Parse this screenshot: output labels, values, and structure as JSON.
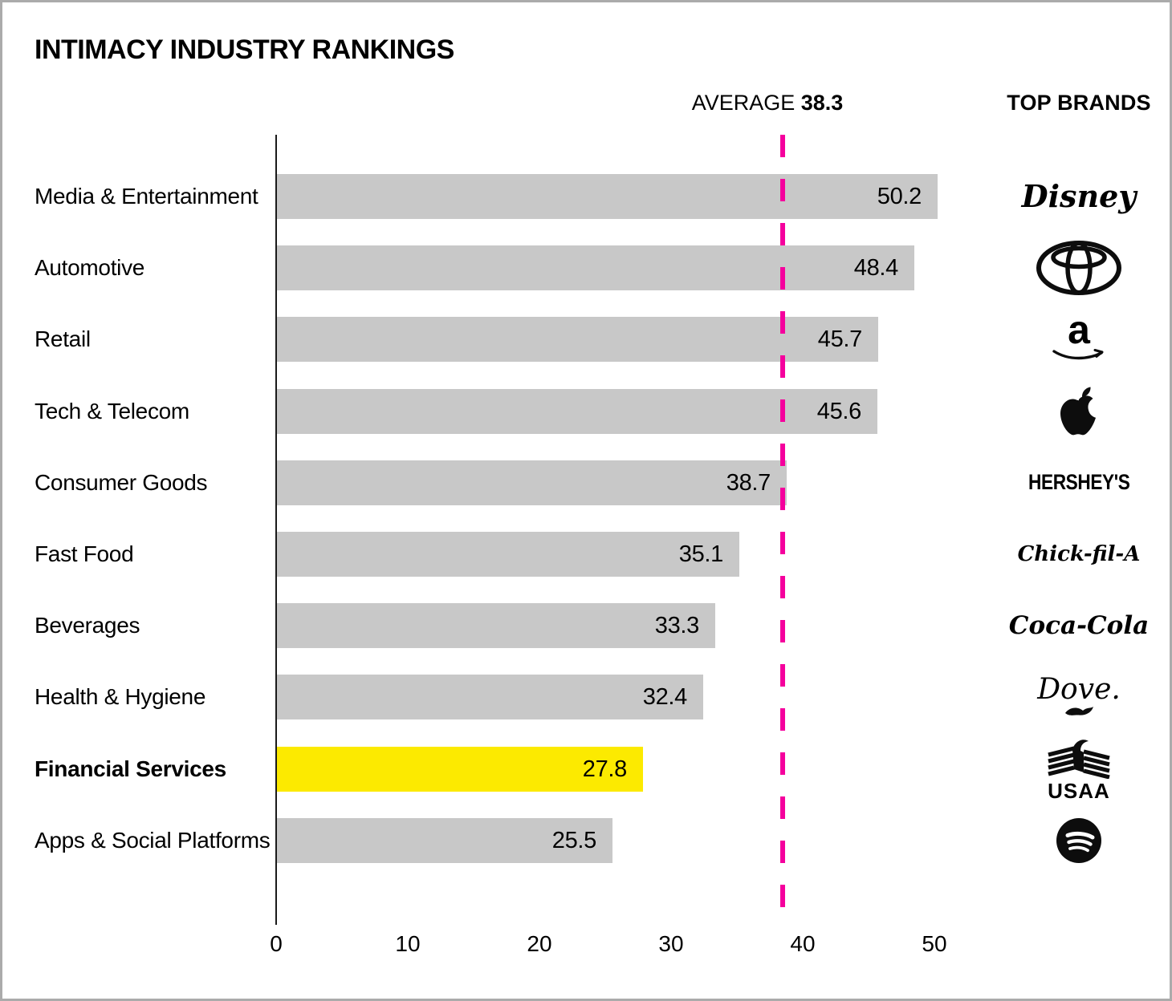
{
  "title": "INTIMACY INDUSTRY RANKINGS",
  "average_label": "AVERAGE",
  "average_value_text": "38.3",
  "top_brands_label": "TOP BRANDS",
  "chart_data": {
    "type": "bar",
    "orientation": "horizontal",
    "title": "INTIMACY INDUSTRY RANKINGS",
    "categories": [
      "Media & Entertainment",
      "Automotive",
      "Retail",
      "Tech & Telecom",
      "Consumer Goods",
      "Fast Food",
      "Beverages",
      "Health & Hygiene",
      "Financial Services",
      "Apps & Social Platforms"
    ],
    "values": [
      50.2,
      48.4,
      45.7,
      45.6,
      38.7,
      35.1,
      33.3,
      32.4,
      27.8,
      25.5
    ],
    "value_labels": [
      "50.2",
      "48.4",
      "45.7",
      "45.6",
      "38.7",
      "35.1",
      "33.3",
      "32.4",
      "27.8",
      "25.5"
    ],
    "top_brands": [
      "Disney",
      "Toyota",
      "Amazon",
      "Apple",
      "Hershey's",
      "Chick-fil-A",
      "Coca-Cola",
      "Dove",
      "USAA",
      "Spotify"
    ],
    "highlight_category": "Financial Services",
    "average": 38.3,
    "x_ticks": [
      "0",
      "10",
      "20",
      "30",
      "40",
      "50"
    ],
    "x_tick_values": [
      0,
      10,
      20,
      30,
      40,
      50
    ],
    "xlim": [
      0,
      55
    ],
    "grid": false,
    "legend": "none",
    "colors": {
      "bar": "#c8c8c8",
      "highlight_bar": "#fcea00",
      "average_line": "#f5009d",
      "text": "#000000"
    }
  }
}
